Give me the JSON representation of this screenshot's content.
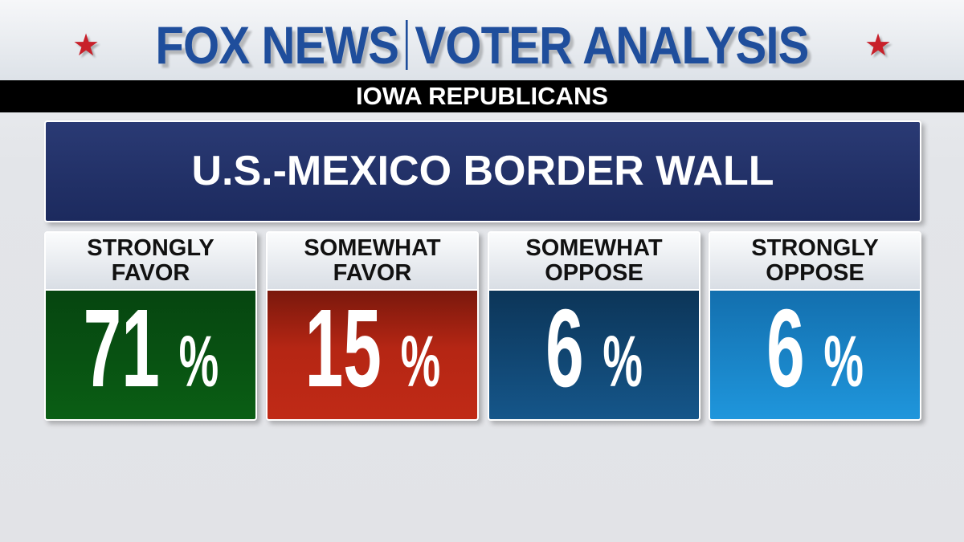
{
  "header": {
    "brand": "FOX NEWS",
    "product": "VOTER ANALYSIS"
  },
  "subtitle": "IOWA REPUBLICANS",
  "title": "U.S.-MEXICO BORDER WALL",
  "colors": {
    "strongly_favor": "#0a5a12",
    "somewhat_favor": "#b52614",
    "somewhat_oppose": "#134d7e",
    "strongly_oppose": "#1c8fd6"
  },
  "chart_data": {
    "type": "table",
    "title": "U.S.-MEXICO BORDER WALL",
    "subtitle": "IOWA REPUBLICANS",
    "categories": [
      "STRONGLY FAVOR",
      "SOMEWHAT FAVOR",
      "SOMEWHAT OPPOSE",
      "STRONGLY OPPOSE"
    ],
    "values": [
      71,
      15,
      6,
      6
    ],
    "cards": [
      {
        "l1": "STRONGLY",
        "l2": "FAVOR",
        "value": "71",
        "unit": "%"
      },
      {
        "l1": "SOMEWHAT",
        "l2": "FAVOR",
        "value": "15",
        "unit": "%"
      },
      {
        "l1": "SOMEWHAT",
        "l2": "OPPOSE",
        "value": "6",
        "unit": "%"
      },
      {
        "l1": "STRONGLY",
        "l2": "OPPOSE",
        "value": "6",
        "unit": "%"
      }
    ]
  }
}
